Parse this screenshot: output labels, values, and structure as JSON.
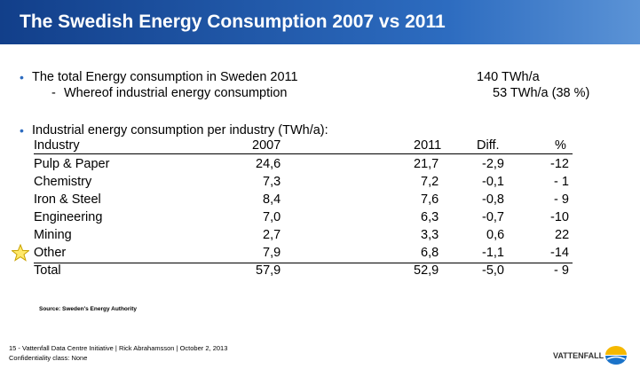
{
  "header": {
    "title": "The Swedish Energy Consumption 2007 vs 2011"
  },
  "bullets": [
    {
      "text": "The total Energy consumption in Sweden 2011",
      "value": "140 TWh/a"
    },
    {
      "text": "Whereof industrial energy consumption",
      "value": "53 TWh/a (38 %)"
    },
    {
      "text": "Industrial energy consumption per industry (TWh/a):"
    }
  ],
  "table": {
    "columns": [
      "Industry",
      "2007",
      "2011",
      "Diff.",
      "%"
    ],
    "rows": [
      [
        "Pulp & Paper",
        "24,6",
        "21,7",
        "-2,9",
        "-12"
      ],
      [
        "Chemistry",
        "7,3",
        "7,2",
        "-0,1",
        "- 1"
      ],
      [
        "Iron & Steel",
        "8,4",
        "7,6",
        "-0,8",
        "- 9"
      ],
      [
        "Engineering",
        "7,0",
        "6,3",
        "-0,7",
        "-10"
      ],
      [
        "Mining",
        "2,7",
        "3,3",
        "0,6",
        "22"
      ],
      [
        "Other",
        "7,9",
        "6,8",
        "-1,1",
        "-14"
      ],
      [
        "Total",
        "57,9",
        "52,9",
        "-5,0",
        "- 9"
      ]
    ]
  },
  "source": "Source: Sweden's Energy Authority",
  "footer": {
    "line1": "15 - Vattenfall Data Centre Initiative | Rick Abrahamsson | October 2, 2013",
    "line2": "Confidentiality class: None",
    "logo": "VATTENFALL"
  }
}
